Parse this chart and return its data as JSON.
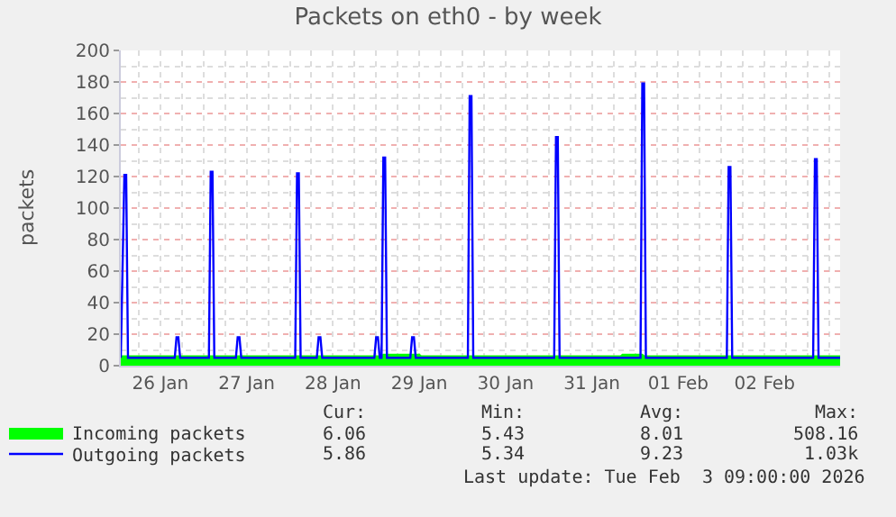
{
  "chart_data": {
    "type": "line",
    "title": "Packets on eth0 - by week",
    "ylabel": "packets",
    "xlim": [
      "2026-01-26T01:00",
      "2026-02-03T09:00"
    ],
    "xticks": [
      {
        "value": "2026-01-26T12:00",
        "label": "26 Jan"
      },
      {
        "value": "2026-01-27T12:00",
        "label": "27 Jan"
      },
      {
        "value": "2026-01-28T12:00",
        "label": "28 Jan"
      },
      {
        "value": "2026-01-29T12:00",
        "label": "29 Jan"
      },
      {
        "value": "2026-01-30T12:00",
        "label": "30 Jan"
      },
      {
        "value": "2026-01-31T12:00",
        "label": "31 Jan"
      },
      {
        "value": "2026-02-01T12:00",
        "label": "01 Feb"
      },
      {
        "value": "2026-02-02T12:00",
        "label": "02 Feb"
      }
    ],
    "ylim": [
      0,
      200
    ],
    "yticks": [
      0,
      20,
      40,
      60,
      80,
      100,
      120,
      140,
      160,
      180,
      200
    ],
    "grid": true,
    "legend": "bottom left",
    "series": [
      {
        "name": "Incoming packets",
        "type": "area",
        "color": "#00ff00",
        "x": [
          "2026-01-26T01:00",
          "2026-01-29T01:30",
          "2026-01-29T02:00",
          "2026-01-29T12:00",
          "2026-01-29T12:30",
          "2026-01-31T20:00",
          "2026-01-31T20:30",
          "2026-02-01T02:00",
          "2026-02-01T02:30",
          "2026-02-03T09:00"
        ],
        "values": [
          6,
          6,
          7,
          7,
          6,
          6,
          7,
          7,
          6,
          6
        ]
      },
      {
        "name": "Outgoing packets",
        "color": "#0000ff",
        "x": [
          "2026-01-26T01:00",
          "2026-01-26T02:00",
          "2026-01-26T02:30",
          "2026-01-26T03:00",
          "2026-01-26T16:00",
          "2026-01-26T16:30",
          "2026-01-26T17:00",
          "2026-01-26T17:30",
          "2026-01-27T01:30",
          "2026-01-27T02:00",
          "2026-01-27T02:30",
          "2026-01-27T03:00",
          "2026-01-27T09:00",
          "2026-01-27T09:30",
          "2026-01-27T10:00",
          "2026-01-27T10:30",
          "2026-01-28T01:30",
          "2026-01-28T02:00",
          "2026-01-28T02:30",
          "2026-01-28T03:00",
          "2026-01-28T07:30",
          "2026-01-28T08:00",
          "2026-01-28T08:30",
          "2026-01-28T09:00",
          "2026-01-28T23:30",
          "2026-01-29T00:00",
          "2026-01-29T00:30",
          "2026-01-29T01:00",
          "2026-01-29T01:30",
          "2026-01-29T02:00",
          "2026-01-29T02:30",
          "2026-01-29T03:00",
          "2026-01-29T09:30",
          "2026-01-29T10:00",
          "2026-01-29T10:30",
          "2026-01-29T11:00",
          "2026-01-30T01:30",
          "2026-01-30T02:00",
          "2026-01-30T02:30",
          "2026-01-30T03:00",
          "2026-01-31T01:30",
          "2026-01-31T02:00",
          "2026-01-31T02:30",
          "2026-01-31T03:00",
          "2026-02-01T01:30",
          "2026-02-01T02:00",
          "2026-02-01T02:30",
          "2026-02-01T03:00",
          "2026-02-02T01:30",
          "2026-02-02T02:00",
          "2026-02-02T02:30",
          "2026-02-02T03:00",
          "2026-02-03T01:30",
          "2026-02-03T02:00",
          "2026-02-03T02:30",
          "2026-02-03T03:00",
          "2026-02-03T09:00"
        ],
        "values": [
          5,
          121,
          121,
          5,
          5,
          18,
          18,
          5,
          5,
          123,
          123,
          5,
          5,
          18,
          18,
          5,
          5,
          122,
          122,
          5,
          5,
          18,
          18,
          5,
          5,
          18,
          18,
          5,
          5,
          132,
          132,
          5,
          5,
          18,
          18,
          5,
          5,
          171,
          171,
          5,
          5,
          145,
          145,
          5,
          5,
          179,
          179,
          5,
          5,
          126,
          126,
          5,
          5,
          131,
          131,
          5,
          5
        ]
      }
    ],
    "annotations": [
      "Cur:",
      "Min:",
      "Avg:",
      "Max:",
      "6.06",
      "5.43",
      "8.01",
      "508.16",
      "5.86",
      "5.34",
      "9.23",
      "1.03k",
      "Last update: Tue Feb  3 09:00:00 2026"
    ]
  }
}
